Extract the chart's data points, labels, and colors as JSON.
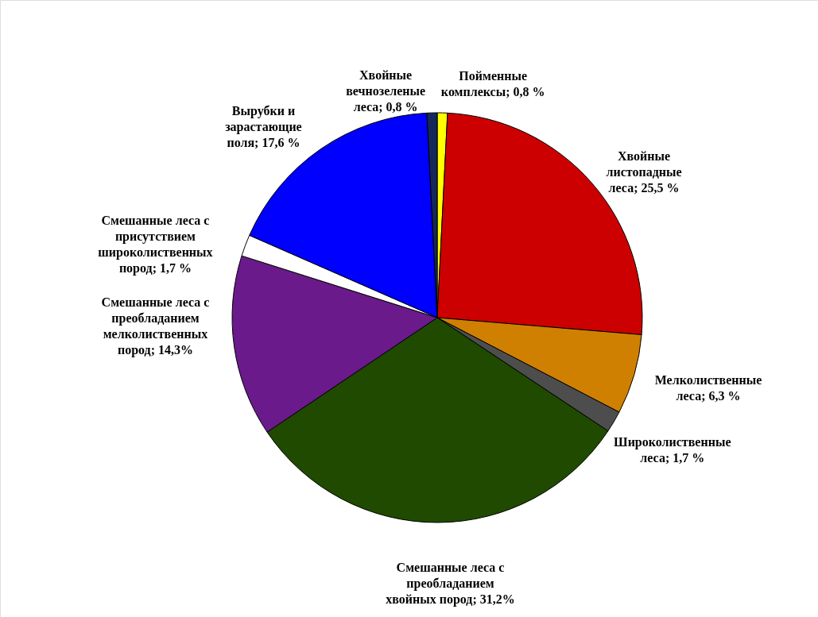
{
  "chart_data": {
    "type": "pie",
    "categories": [
      "Пойменные комплексы",
      "Хвойные листопадные леса",
      "Мелколиственные леса",
      "Широколиственные леса",
      "Смешанные леса с преобладанием хвойных пород",
      "Смешанные леса с преобладанием мелколиственных пород",
      "Смешанные леса с присутствием широколиственных пород",
      "Вырубки и зарастающие поля",
      "Хвойные вечнозеленые леса"
    ],
    "values": [
      0.8,
      25.5,
      6.3,
      1.7,
      31.2,
      14.3,
      1.7,
      17.6,
      0.8
    ],
    "value_labels": [
      "0,8 %",
      "25,5 %",
      "6,3 %",
      "1,7 %",
      "31,2%",
      "14,3%",
      "1,7 %",
      "17,6 %",
      "0,8 %"
    ],
    "colors": [
      "#ffff00",
      "#cc0000",
      "#d08000",
      "#4d4d4d",
      "#1f4a00",
      "#6a1a8a",
      "#ffffff",
      "#0000ff",
      "#14285a"
    ]
  }
}
